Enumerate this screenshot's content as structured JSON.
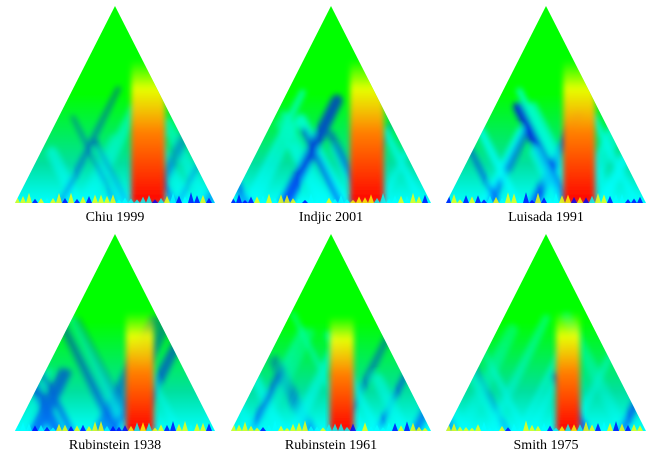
{
  "figure": {
    "chart_data": [
      {
        "type": "heatmap",
        "title": "Chiu 1999"
      },
      {
        "type": "heatmap",
        "title": "Indjic 2001"
      },
      {
        "type": "heatmap",
        "title": "Luisada 1991"
      },
      {
        "type": "heatmap",
        "title": "Rubinstein 1938"
      },
      {
        "type": "heatmap",
        "title": "Rubinstein 1961"
      },
      {
        "type": "heatmap",
        "title": "Smith 1975"
      }
    ],
    "colors": {
      "low": "#0000ff",
      "mid_low": "#00ffff",
      "mid": "#00ff00",
      "mid_high": "#ffff00",
      "high": "#ff0000",
      "background": "#ffffff"
    }
  }
}
